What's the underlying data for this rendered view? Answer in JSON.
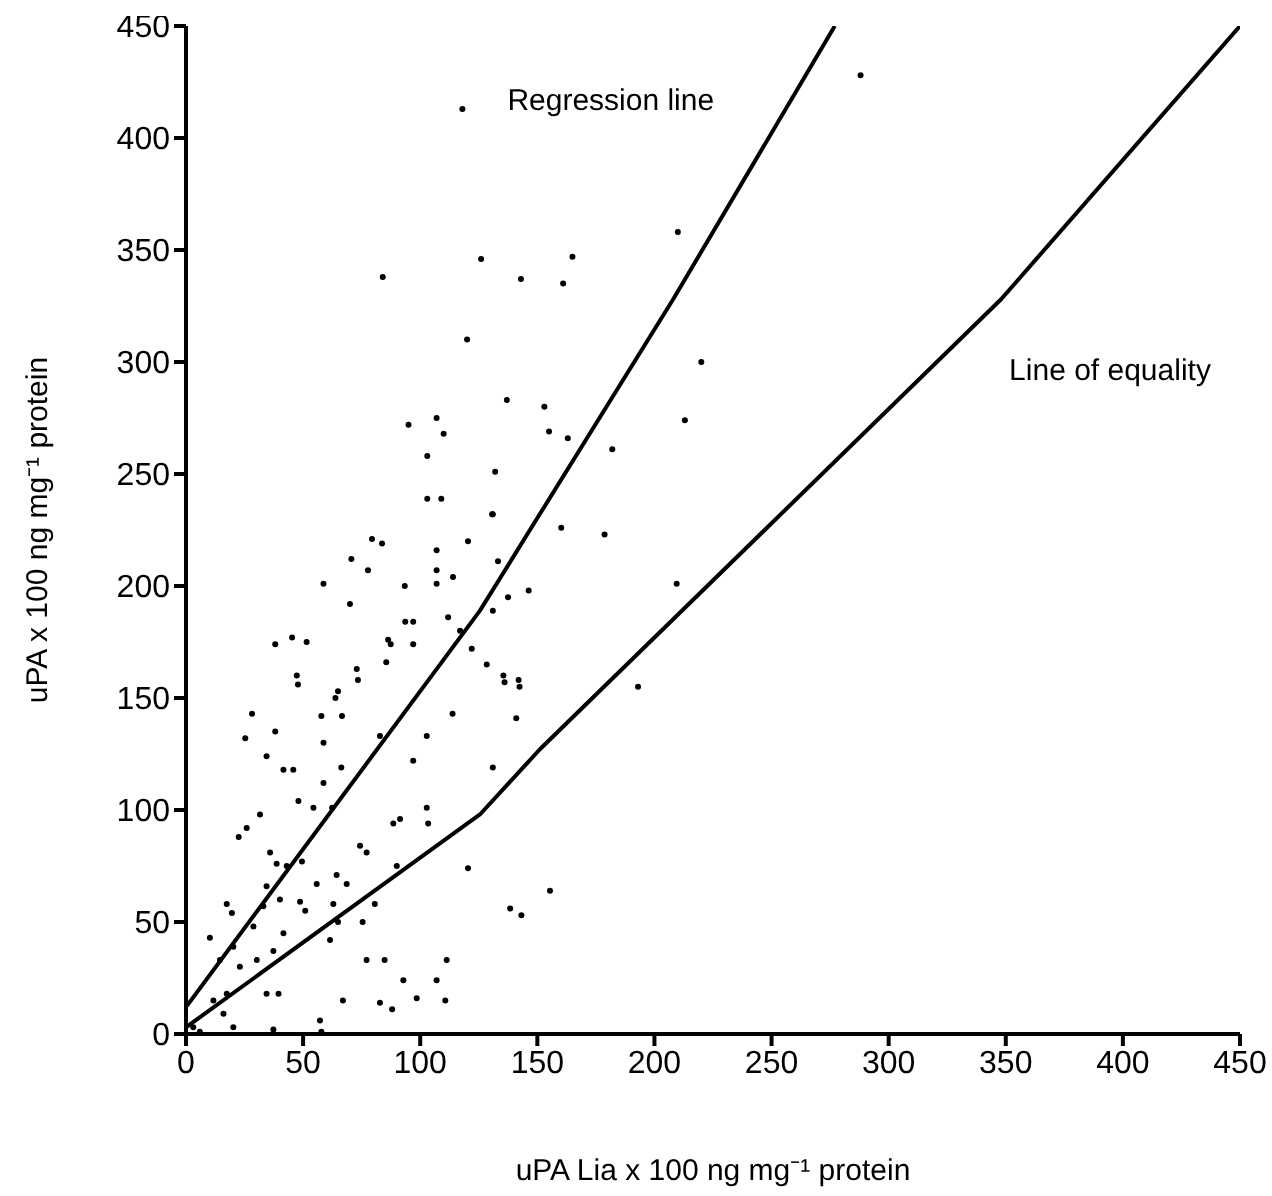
{
  "chart_data": {
    "type": "scatter",
    "xlabel": "uPA Lia x 100 ng mg⁻¹ protein",
    "ylabel": "uPA x 100 ng mg⁻¹ protein",
    "xlim": [
      0,
      450
    ],
    "ylim": [
      0,
      450
    ],
    "xticks": [
      0,
      50,
      100,
      150,
      200,
      250,
      300,
      350,
      400,
      450
    ],
    "yticks": [
      0,
      50,
      100,
      150,
      200,
      250,
      300,
      350,
      400,
      450
    ],
    "grid": false,
    "legend": false,
    "series": [
      {
        "marker": "circle",
        "color": "#000000",
        "x": [
          58.7,
          79.4,
          83.7,
          70.6,
          77.7,
          107,
          120.4,
          130.7,
          107,
          107,
          114,
          93.4,
          70,
          38.1,
          45.3,
          51.5,
          47.3,
          47.8,
          64.9,
          63.8,
          57.8,
          66.6,
          28.2,
          25.3,
          38.1,
          34.4,
          41.6,
          45.8,
          58.7,
          72.9,
          73.4,
          86.3,
          87.4,
          93.6,
          97,
          97,
          85.5,
          111.9,
          117,
          122,
          128.4,
          135.5,
          142,
          141,
          146.3,
          137.5,
          131,
          113.8,
          102.8,
          97,
          82.8,
          66.3,
          58.7,
          48,
          54.4,
          62.4,
          31.6,
          25.9,
          22.5,
          35.9,
          38.7,
          43,
          49.5,
          55.8,
          64.3,
          68.6,
          74.3,
          77.1,
          88.5,
          91.4,
          102.8,
          103.4,
          90,
          50.9,
          64.9,
          75.4,
          80.6,
          34.4,
          40.1,
          17.4,
          19.6,
          10.2,
          14.5,
          20.2,
          23,
          30.2,
          37.3,
          41.6,
          34.4,
          39.5,
          17.4,
          11.7,
          16,
          20.2,
          37.3,
          57.2,
          57.8,
          67,
          77.1,
          84.8,
          82.8,
          88,
          92.8,
          98.5,
          107,
          111.3,
          110.7,
          120.4,
          131,
          138.4,
          143.2,
          61.5,
          62.9,
          48.7,
          28.8,
          33,
          5.9,
          3.1,
          118,
          84,
          126,
          143,
          165,
          161,
          210,
          120,
          220,
          213,
          137,
          153,
          155,
          163,
          95,
          107,
          110,
          103,
          132,
          182,
          103,
          109,
          131,
          160.2,
          178.7,
          133.2,
          209.5,
          136,
          142.4,
          193,
          155.4,
          288
        ],
        "values": [
          201,
          221,
          219,
          212,
          207,
          216,
          220,
          232,
          207,
          201,
          204,
          200,
          192,
          174,
          177,
          175,
          160,
          156,
          153,
          150,
          142,
          142,
          143,
          132,
          135,
          124,
          118,
          118,
          130,
          163,
          158,
          176,
          174,
          184,
          184,
          174,
          166,
          186,
          180,
          172,
          165,
          160,
          158,
          141,
          198,
          195,
          189,
          143,
          133,
          122,
          133,
          119,
          112,
          104,
          101,
          101,
          98,
          92,
          88,
          81,
          76,
          75,
          77,
          67,
          71,
          67,
          84,
          81,
          94,
          96,
          101,
          94,
          75,
          55,
          50,
          50,
          58,
          66,
          60,
          58,
          54,
          43,
          33,
          39,
          30,
          33,
          37,
          45,
          18,
          18,
          18,
          15,
          9,
          3,
          2,
          6,
          1,
          15,
          33,
          33,
          14,
          11,
          24,
          16,
          24,
          33,
          15,
          74,
          119,
          56,
          53,
          42,
          58,
          59,
          48,
          57,
          1,
          3,
          413,
          338,
          346,
          337,
          347,
          335,
          358,
          310,
          300,
          274,
          283,
          280,
          269,
          266,
          272,
          275,
          268,
          258,
          251,
          261,
          239,
          239,
          232,
          226,
          223,
          211,
          201,
          157,
          155,
          155,
          64,
          428
        ]
      },
      {
        "type": "line",
        "name": "Regression line",
        "color": "#000000",
        "x": [
          0,
          125.5,
          151,
          208,
          277
        ],
        "values": [
          12,
          189,
          232,
          328,
          450
        ]
      },
      {
        "type": "line",
        "name": "Line of equality",
        "color": "#000000",
        "x": [
          0,
          125.5,
          151,
          348,
          450
        ],
        "values": [
          3,
          98,
          127,
          328,
          450
        ]
      }
    ]
  }
}
